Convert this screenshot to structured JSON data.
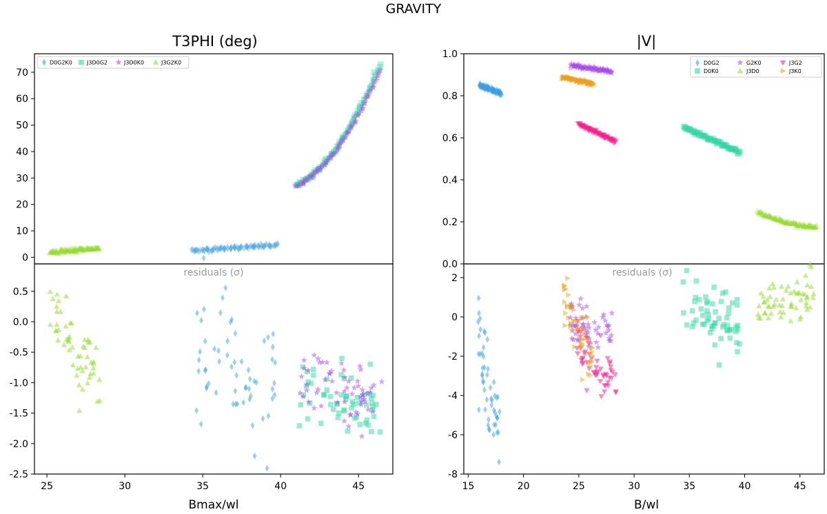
{
  "suptitle": "GRAVITY",
  "colors": {
    "D0G2": "#3b9fe0",
    "D0K0": "#34d6a4",
    "G2K0": "#a64ae8",
    "J3D0": "#92da2a",
    "J3G2": "#f0208f",
    "J3K0": "#eaa020",
    "D0G2K0": "#3b9fe0",
    "J3D0G2": "#34d6a4",
    "J3D0K0": "#a64ae8",
    "J3G2K0": "#92da2a"
  },
  "chart_data": [
    {
      "type": "scatter",
      "panel": "left",
      "title": "T3PHI (deg)",
      "xlabel": "Bmax/wl",
      "xlim": [
        24.2,
        47.2
      ],
      "x_ticks": [
        25,
        30,
        35,
        40,
        45
      ],
      "top": {
        "ylim": [
          -2.5,
          77
        ],
        "y_ticks": [
          0,
          10,
          20,
          30,
          40,
          50,
          60,
          70
        ],
        "legend": [
          "D0G2K0",
          "J3D0G2",
          "J3D0K0",
          "J3G2K0"
        ],
        "legend_markers": [
          "diamond",
          "square",
          "star",
          "triangle-up"
        ],
        "legend_position": "upper-left",
        "series": [
          {
            "name": "D0G2K0",
            "marker": "diamond",
            "x_range": [
              34.3,
              39.8
            ],
            "y": [
              2.5,
              4.6
            ],
            "curve": "linear"
          },
          {
            "name": "J3D0G2",
            "marker": "square",
            "x_range": [
              41.0,
              46.4
            ],
            "y": [
              27.0,
              73.0
            ],
            "curve": "quadratic"
          },
          {
            "name": "J3D0K0",
            "marker": "star",
            "x_range": [
              41.0,
              46.4
            ],
            "y": [
              27.0,
              71.0
            ],
            "curve": "quadratic"
          },
          {
            "name": "J3G2K0",
            "marker": "triangle-up",
            "x_range": [
              25.2,
              28.4
            ],
            "y": [
              2.0,
              3.5
            ],
            "curve": "linear"
          }
        ]
      },
      "bottom": {
        "label": "residuals (σ)",
        "ylim": [
          -2.5,
          0.95
        ],
        "y_ticks": [
          -2.5,
          -2.0,
          -1.5,
          -1.0,
          -0.5,
          0.0,
          0.5
        ],
        "y_tick_labels": [
          "-2.5",
          "-2.0",
          "-1.5",
          "-1.0",
          "-0.5",
          "0.0",
          "0.5"
        ],
        "series": [
          {
            "name": "J3G2K0",
            "marker": "triangle-up",
            "x_range": [
              25.2,
              28.4
            ],
            "y_start": 0.1,
            "y_end": -1.0,
            "spread": 0.32,
            "count": 55
          },
          {
            "name": "D0G2K0",
            "marker": "diamond",
            "x_range": [
              34.5,
              39.8
            ],
            "y_start": -0.6,
            "y_end": -1.0,
            "spread": 0.55,
            "count": 60
          },
          {
            "name": "J3D0G2",
            "marker": "square",
            "x_range": [
              41.2,
              46.5
            ],
            "y_start": -1.2,
            "y_end": -1.4,
            "spread": 0.28,
            "count": 60
          },
          {
            "name": "J3D0K0",
            "marker": "star",
            "x_range": [
              41.2,
              46.5
            ],
            "y_start": -0.9,
            "y_end": -1.3,
            "spread": 0.28,
            "count": 60
          }
        ]
      }
    },
    {
      "type": "scatter",
      "panel": "right",
      "title": "|V|",
      "xlabel": "B/wl",
      "xlim": [
        14.6,
        47.2
      ],
      "x_ticks": [
        15,
        20,
        25,
        30,
        35,
        40,
        45
      ],
      "top": {
        "ylim": [
          0.0,
          1.0
        ],
        "y_ticks": [
          0.0,
          0.2,
          0.4,
          0.6,
          0.8,
          1.0
        ],
        "y_tick_labels": [
          "0.0",
          "0.2",
          "0.4",
          "0.6",
          "0.8",
          "1.0"
        ],
        "legend": [
          "D0G2",
          "D0K0",
          "G2K0",
          "J3D0",
          "J3G2",
          "J3K0"
        ],
        "legend_markers": [
          "diamond",
          "square",
          "star",
          "triangle-up",
          "triangle-down",
          "triangle-right"
        ],
        "legend_position": "upper-right",
        "series": [
          {
            "name": "D0G2",
            "marker": "diamond",
            "x_range": [
              16.0,
              18.0
            ],
            "y": [
              0.85,
              0.81
            ],
            "curve": "linear"
          },
          {
            "name": "D0K0",
            "marker": "square",
            "x_range": [
              34.5,
              39.6
            ],
            "y": [
              0.65,
              0.53
            ],
            "curve": "linear"
          },
          {
            "name": "G2K0",
            "marker": "star",
            "x_range": [
              24.3,
              28.0
            ],
            "y": [
              0.945,
              0.915
            ],
            "curve": "linear"
          },
          {
            "name": "J3D0",
            "marker": "triangle-up",
            "x_range": [
              41.2,
              46.5
            ],
            "y": [
              0.245,
              0.175
            ],
            "curve": "decay"
          },
          {
            "name": "J3G2",
            "marker": "triangle-down",
            "x_range": [
              25.0,
              28.3
            ],
            "y": [
              0.665,
              0.58
            ],
            "curve": "linear"
          },
          {
            "name": "J3K0",
            "marker": "triangle-right",
            "x_range": [
              23.5,
              26.4
            ],
            "y": [
              0.89,
              0.855
            ],
            "curve": "linear"
          }
        ]
      },
      "bottom": {
        "label": "residuals (σ)",
        "ylim": [
          -8.0,
          2.7
        ],
        "y_ticks": [
          -8,
          -6,
          -4,
          -2,
          0,
          2
        ],
        "series": [
          {
            "name": "D0G2",
            "marker": "diamond",
            "x_range": [
              15.9,
              17.9
            ],
            "y_start": -0.9,
            "y_end": -6.0,
            "spread": 1.1,
            "count": 50
          },
          {
            "name": "D0K0",
            "marker": "square",
            "x_range": [
              34.3,
              39.6
            ],
            "y_start": 0.6,
            "y_end": -0.5,
            "spread": 0.8,
            "count": 60
          },
          {
            "name": "G2K0",
            "marker": "star",
            "x_range": [
              24.2,
              28.0
            ],
            "y_start": -0.2,
            "y_end": -1.2,
            "spread": 0.7,
            "count": 55
          },
          {
            "name": "J3D0",
            "marker": "triangle-up",
            "x_range": [
              41.2,
              46.5
            ],
            "y_start": 0.8,
            "y_end": 1.3,
            "spread": 0.55,
            "count": 60
          },
          {
            "name": "J3G2",
            "marker": "triangle-down",
            "x_range": [
              24.8,
              28.4
            ],
            "y_start": -1.4,
            "y_end": -3.8,
            "spread": 0.7,
            "count": 55
          },
          {
            "name": "J3K0",
            "marker": "triangle-right",
            "x_range": [
              23.6,
              26.3
            ],
            "y_start": 0.8,
            "y_end": -2.6,
            "spread": 0.9,
            "count": 50
          }
        ]
      }
    }
  ]
}
